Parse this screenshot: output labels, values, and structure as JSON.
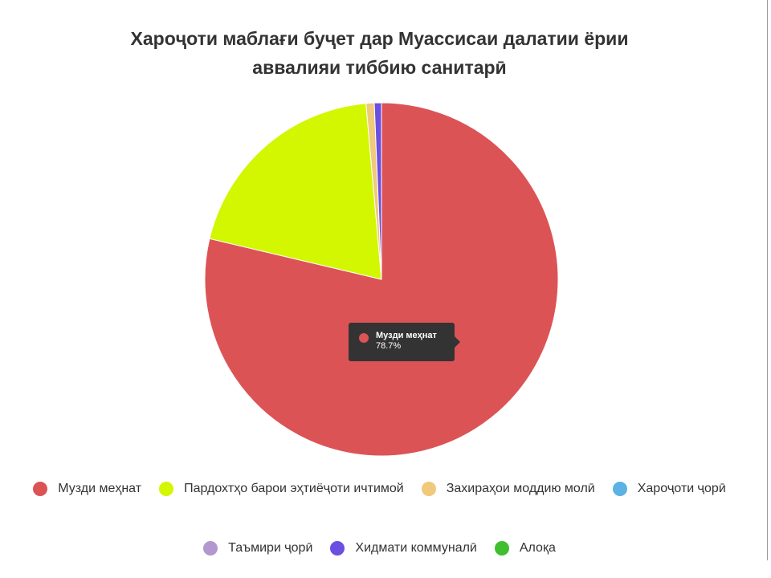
{
  "chart_data": {
    "type": "pie",
    "title_lines": [
      "Хароҷоти маблағи буҷет дар Муассисаи далатии ёрии",
      "аввалияи тиббию санитарӣ"
    ],
    "unit": "%",
    "slices": [
      {
        "label": "Музди меҳнат",
        "value": 78.7,
        "color": "#dc5356"
      },
      {
        "label": "Пардохтҳо барои эҳтиёҷоти ичтимой",
        "value": 19.9,
        "color": "#d2f700"
      },
      {
        "label": "Захираҳои моддию молӣ",
        "value": 0.75,
        "color": "#f0c97a"
      },
      {
        "label": "Хароҷоти ҷорӣ",
        "value": 0.0,
        "color": "#5db1e3"
      },
      {
        "label": "Таъмири ҷорӣ",
        "value": 0.0,
        "color": "#b298cf"
      },
      {
        "label": "Хидмати коммуналӣ",
        "value": 0.65,
        "color": "#6a4fe0"
      },
      {
        "label": "Алоқа",
        "value": 0.0,
        "color": "#3fbf2f"
      }
    ],
    "legend_position": "bottom"
  },
  "tooltip": {
    "label": "Музди меҳнат",
    "value": "78.7%",
    "color": "#dc5356"
  }
}
